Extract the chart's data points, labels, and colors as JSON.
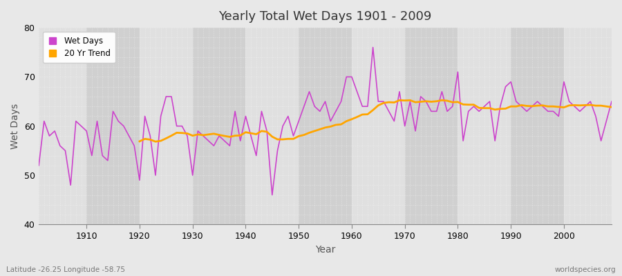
{
  "title": "Yearly Total Wet Days 1901 - 2009",
  "xlabel": "Year",
  "ylabel": "Wet Days",
  "lat_lon_label": "Latitude -26.25 Longitude -58.75",
  "source_label": "worldspecies.org",
  "line_color": "#CC44CC",
  "trend_color": "#FFA500",
  "fig_bg_color": "#E8E8E8",
  "plot_bg_color": "#D8D8D8",
  "band_light": "#E0E0E0",
  "band_dark": "#D0D0D0",
  "grid_color": "#BBBBBB",
  "ylim": [
    40,
    80
  ],
  "xlim": [
    1901,
    2009
  ],
  "yticks": [
    40,
    50,
    60,
    70,
    80
  ],
  "xticks": [
    1910,
    1920,
    1930,
    1940,
    1950,
    1960,
    1970,
    1980,
    1990,
    2000
  ],
  "legend_labels": [
    "Wet Days",
    "20 Yr Trend"
  ],
  "trend_window": 20,
  "years": [
    1901,
    1902,
    1903,
    1904,
    1905,
    1906,
    1907,
    1908,
    1909,
    1910,
    1911,
    1912,
    1913,
    1914,
    1915,
    1916,
    1917,
    1918,
    1919,
    1920,
    1921,
    1922,
    1923,
    1924,
    1925,
    1926,
    1927,
    1928,
    1929,
    1930,
    1931,
    1932,
    1933,
    1934,
    1935,
    1936,
    1937,
    1938,
    1939,
    1940,
    1941,
    1942,
    1943,
    1944,
    1945,
    1946,
    1947,
    1948,
    1949,
    1950,
    1951,
    1952,
    1953,
    1954,
    1955,
    1956,
    1957,
    1958,
    1959,
    1960,
    1961,
    1962,
    1963,
    1964,
    1965,
    1966,
    1967,
    1968,
    1969,
    1970,
    1971,
    1972,
    1973,
    1974,
    1975,
    1976,
    1977,
    1978,
    1979,
    1980,
    1981,
    1982,
    1983,
    1984,
    1985,
    1986,
    1987,
    1988,
    1989,
    1990,
    1991,
    1992,
    1993,
    1994,
    1995,
    1996,
    1997,
    1998,
    1999,
    2000,
    2001,
    2002,
    2003,
    2004,
    2005,
    2006,
    2007,
    2008,
    2009
  ],
  "wet_days": [
    52,
    61,
    58,
    59,
    56,
    55,
    48,
    61,
    60,
    59,
    54,
    61,
    54,
    53,
    63,
    61,
    60,
    58,
    56,
    49,
    62,
    58,
    50,
    62,
    66,
    66,
    60,
    60,
    58,
    50,
    59,
    58,
    57,
    56,
    58,
    57,
    56,
    63,
    57,
    62,
    58,
    54,
    63,
    59,
    46,
    55,
    60,
    62,
    58,
    61,
    64,
    67,
    64,
    63,
    65,
    61,
    63,
    65,
    70,
    70,
    67,
    64,
    64,
    76,
    65,
    65,
    63,
    61,
    67,
    60,
    65,
    59,
    66,
    65,
    63,
    63,
    67,
    63,
    64,
    71,
    57,
    63,
    64,
    63,
    64,
    65,
    57,
    64,
    68,
    69,
    65,
    64,
    63,
    64,
    65,
    64,
    63,
    63,
    62,
    69,
    65,
    64,
    63,
    64,
    65,
    62,
    57,
    61,
    65
  ]
}
